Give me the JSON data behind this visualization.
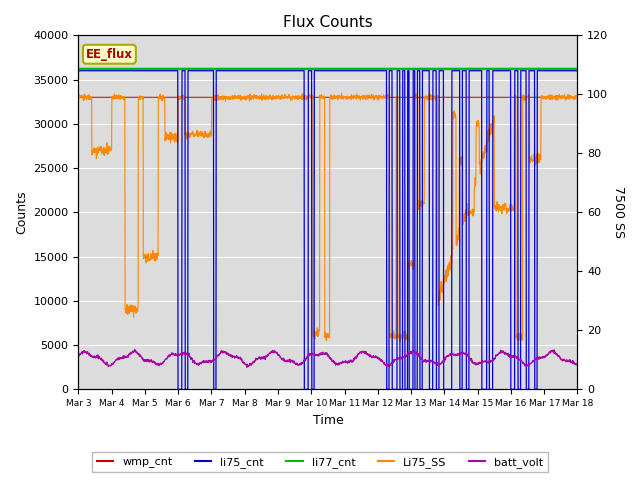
{
  "title": "Flux Counts",
  "xlabel": "Time",
  "ylabel_left": "Counts",
  "ylabel_right": "7500 SS",
  "ylim_left": [
    0,
    40000
  ],
  "ylim_right": [
    0,
    120
  ],
  "background_color": "#dcdcdc",
  "annotation_text": "EE_flux",
  "annotation_color": "#aa0000",
  "annotation_bg": "#ffffcc",
  "annotation_border": "#aaaa00",
  "x_tick_labels": [
    "Mar 3",
    "Mar 4",
    "Mar 5",
    "Mar 6",
    "Mar 7",
    "Mar 8",
    "Mar 9",
    "Mar 10",
    "Mar 11",
    "Mar 12",
    "Mar 13",
    "Mar 14",
    "Mar 15",
    "Mar 16",
    "Mar 17",
    "Mar 18"
  ],
  "colors": {
    "wmp_cnt": "#cc0000",
    "li75_cnt": "#0000dd",
    "li77_cnt": "#00bb00",
    "Li75_SS": "#ff8800",
    "batt_volt": "#aa00aa"
  },
  "legend_labels": [
    "wmp_cnt",
    "li75_cnt",
    "li77_cnt",
    "Li75_SS",
    "batt_volt"
  ]
}
